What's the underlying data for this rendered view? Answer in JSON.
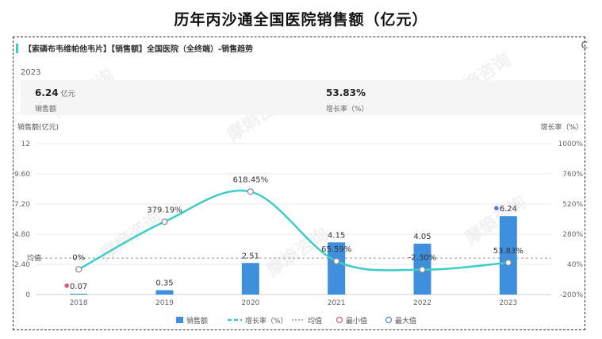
{
  "page_title": "历年丙沙通全国医院销售额（亿元）",
  "panel": {
    "header": "【索磷布韦维帕他韦片】【销售额】全国医院（全终端）-销售趋势",
    "corner_glyph": "C",
    "year": "2023",
    "kpis": [
      {
        "value": "6.24",
        "unit": "亿元",
        "label": "销售额"
      },
      {
        "value": "53.83%",
        "unit": "",
        "label": "增长率（%）"
      }
    ]
  },
  "watermark": "摩熵咨询",
  "colors": {
    "bar": "#3e8fdc",
    "line": "#3dccc7",
    "min": "#e05576",
    "max": "#5b7bd5",
    "average": "#999999"
  },
  "chart_data": {
    "type": "bar",
    "categories": [
      "2018",
      "2019",
      "2020",
      "2021",
      "2022",
      "2023"
    ],
    "series": [
      {
        "name": "销售额",
        "type": "bar",
        "axis": "left",
        "values": [
          0.07,
          0.35,
          2.51,
          4.15,
          4.05,
          6.24
        ],
        "labels": [
          "0.07",
          "0.35",
          "2.51",
          "4.15",
          "4.05",
          "6.24"
        ]
      },
      {
        "name": "增长率（%）",
        "type": "line",
        "axis": "right",
        "values": [
          0,
          379.19,
          618.45,
          65.59,
          -2.3,
          53.83
        ],
        "labels": [
          "0%",
          "379.19%",
          "618.45%",
          "65.59%",
          "-2.30%",
          "53.83%"
        ]
      }
    ],
    "left_axis": {
      "label": "销售额(亿元)",
      "ticks": [
        "0",
        "2.40",
        "4.80",
        "7.20",
        "9.60",
        "12"
      ],
      "ylim": [
        0,
        12
      ]
    },
    "right_axis": {
      "label": "增长率（%）",
      "ticks": [
        "-200%",
        "40%",
        "280%",
        "520%",
        "760%",
        "1000%"
      ],
      "ylim": [
        -200,
        1000
      ]
    },
    "average": {
      "label": "均值",
      "value": 2.9
    },
    "min_point": {
      "index": 0
    },
    "max_point": {
      "index": 5
    },
    "legend": {
      "position": "bottom",
      "items": [
        "销售额",
        "增长率（%）",
        "均值",
        "最小值",
        "最大值"
      ]
    },
    "grid": true
  }
}
